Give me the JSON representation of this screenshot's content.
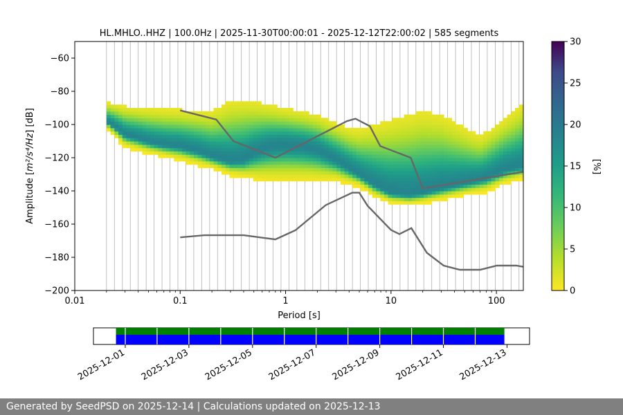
{
  "title": "HL.MHLO..HHZ | 100.0Hz | 2025-11-30T00:00:01 - 2025-12-12T22:00:02 | 585 segments",
  "footer": "Generated by SeedPSD on 2025-12-14 | Calculations updated on 2025-12-13",
  "chart_data": [
    {
      "type": "heatmap",
      "title": "HL.MHLO..HHZ | 100.0Hz | 2025-11-30T00:00:01 - 2025-12-12T22:00:02 | 585 segments",
      "xlabel": "Period [s]",
      "ylabel_prefix": "Amplitude [",
      "ylabel_math": "m²/s⁴/Hz",
      "ylabel_suffix": "] [dB]",
      "x_scale": "log",
      "xlim": [
        0.01,
        180
      ],
      "ylim": [
        -200,
        -50
      ],
      "x_ticks": [
        {
          "value": 0.01,
          "label": "0.01"
        },
        {
          "value": 0.1,
          "label": "0.1"
        },
        {
          "value": 1,
          "label": "1"
        },
        {
          "value": 10,
          "label": "10"
        },
        {
          "value": 100,
          "label": "100"
        }
      ],
      "y_ticks": [
        -60,
        -80,
        -100,
        -120,
        -140,
        -160,
        -180,
        -200
      ],
      "grid": "vertical lines at PSD period bins",
      "colorbar": {
        "label": "[%]",
        "min": 0,
        "max": 30,
        "ticks": [
          0,
          5,
          10,
          15,
          20,
          25,
          30
        ],
        "colormap": "viridis_r"
      },
      "psd_mode": [
        [
          0.02,
          -99
        ],
        [
          0.025,
          -103
        ],
        [
          0.03,
          -107
        ],
        [
          0.04,
          -109
        ],
        [
          0.05,
          -111
        ],
        [
          0.07,
          -113
        ],
        [
          0.1,
          -114
        ],
        [
          0.15,
          -117
        ],
        [
          0.2,
          -120
        ],
        [
          0.3,
          -123
        ],
        [
          0.4,
          -122
        ],
        [
          0.5,
          -118
        ],
        [
          0.7,
          -114
        ],
        [
          1,
          -113
        ],
        [
          1.5,
          -114
        ],
        [
          2,
          -116
        ],
        [
          3,
          -122
        ],
        [
          4,
          -127
        ],
        [
          5,
          -131
        ],
        [
          7,
          -137
        ],
        [
          10,
          -142
        ],
        [
          15,
          -143
        ],
        [
          20,
          -142
        ],
        [
          30,
          -139
        ],
        [
          50,
          -136
        ],
        [
          80,
          -133
        ],
        [
          120,
          -128
        ],
        [
          180,
          -126
        ]
      ],
      "psd_upper": [
        [
          0.018,
          -87
        ],
        [
          0.03,
          -90
        ],
        [
          0.05,
          -91
        ],
        [
          0.1,
          -92
        ],
        [
          0.2,
          -93
        ],
        [
          0.3,
          -87
        ],
        [
          0.4,
          -86
        ],
        [
          0.6,
          -88
        ],
        [
          1,
          -91
        ],
        [
          1.5,
          -93
        ],
        [
          2,
          -95
        ],
        [
          3,
          -100
        ],
        [
          4,
          -103
        ],
        [
          5,
          -104
        ],
        [
          7,
          -101
        ],
        [
          10,
          -98
        ],
        [
          15,
          -95
        ],
        [
          20,
          -93
        ],
        [
          30,
          -95
        ],
        [
          50,
          -103
        ],
        [
          70,
          -108
        ],
        [
          100,
          -101
        ],
        [
          140,
          -94
        ],
        [
          180,
          -88
        ]
      ],
      "psd_lower": [
        [
          0.018,
          -99
        ],
        [
          0.03,
          -113
        ],
        [
          0.05,
          -117
        ],
        [
          0.1,
          -121
        ],
        [
          0.2,
          -126
        ],
        [
          0.3,
          -130
        ],
        [
          0.5,
          -132
        ],
        [
          0.7,
          -133
        ],
        [
          1,
          -133
        ],
        [
          2,
          -133
        ],
        [
          3,
          -133
        ],
        [
          5,
          -137
        ],
        [
          7,
          -143
        ],
        [
          10,
          -147
        ],
        [
          15,
          -148
        ],
        [
          20,
          -147
        ],
        [
          30,
          -145
        ],
        [
          50,
          -142
        ],
        [
          80,
          -140
        ],
        [
          120,
          -135
        ],
        [
          180,
          -132
        ]
      ],
      "nhnm": [
        [
          0.1,
          -91.5
        ],
        [
          0.22,
          -97
        ],
        [
          0.32,
          -110
        ],
        [
          0.8,
          -120
        ],
        [
          3.8,
          -98
        ],
        [
          4.6,
          -96.5
        ],
        [
          6.3,
          -101
        ],
        [
          7.9,
          -113
        ],
        [
          15.4,
          -120
        ],
        [
          20,
          -138.5
        ],
        [
          180,
          -128.5
        ]
      ],
      "nlnm": [
        [
          0.1,
          -168
        ],
        [
          0.17,
          -166.7
        ],
        [
          0.4,
          -166.7
        ],
        [
          0.8,
          -169.2
        ],
        [
          1.24,
          -163.7
        ],
        [
          2.4,
          -148.6
        ],
        [
          4.3,
          -141.1
        ],
        [
          5,
          -141.1
        ],
        [
          6,
          -149
        ],
        [
          10,
          -163.5
        ],
        [
          12,
          -166
        ],
        [
          15.6,
          -162.4
        ],
        [
          21.9,
          -177.3
        ],
        [
          31.6,
          -185
        ],
        [
          45,
          -187.5
        ],
        [
          70,
          -187.5
        ],
        [
          101,
          -185
        ],
        [
          154,
          -185
        ],
        [
          180,
          -185.7
        ]
      ]
    },
    {
      "type": "bar",
      "title": "",
      "x_ticks": [
        "2025-12-01",
        "2025-12-03",
        "2025-12-05",
        "2025-12-07",
        "2025-12-09",
        "2025-12-11",
        "2025-12-13"
      ],
      "xlim": [
        "2025-11-30T00:00",
        "2025-12-13T17:00"
      ],
      "data_range": [
        "2025-11-30T17:00",
        "2025-12-12T22:00"
      ],
      "series": [
        {
          "color": "#008000",
          "row": "top"
        },
        {
          "color": "#0000ff",
          "row": "bottom"
        }
      ],
      "gap_days": [
        "2025-12-01",
        "2025-12-02",
        "2025-12-03",
        "2025-12-04",
        "2025-12-05",
        "2025-12-06",
        "2025-12-07",
        "2025-12-08",
        "2025-12-09",
        "2025-12-10",
        "2025-12-11",
        "2025-12-12"
      ]
    }
  ]
}
